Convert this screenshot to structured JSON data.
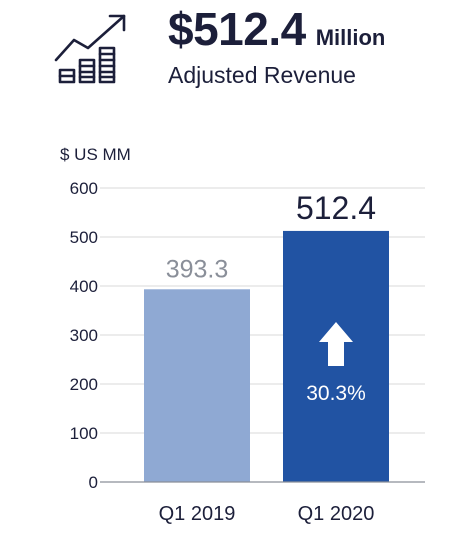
{
  "header": {
    "value": "$512.4",
    "unit": "Million",
    "subtitle": "Adjusted Revenue",
    "icon": "rising-revenue-chart-icon"
  },
  "chart_data": {
    "type": "bar",
    "ylabel": "$ US MM",
    "ylim": [
      0,
      600
    ],
    "yticks": [
      0,
      100,
      200,
      300,
      400,
      500,
      600
    ],
    "categories": [
      "Q1 2019",
      "Q1 2020"
    ],
    "values": [
      393.3,
      512.4
    ],
    "value_labels": [
      "393.3",
      "512.4"
    ],
    "bar_colors": [
      "#8fa9d3",
      "#2153a3"
    ],
    "value_label_colors": [
      "#8a8f99",
      "#1c1f3a"
    ],
    "growth": {
      "label": "30.3%",
      "direction": "up",
      "color": "#ffffff"
    },
    "grid": true,
    "grid_color": "#d9d9d9",
    "axis_color": "#8a8f99",
    "label_color": "#1c1f3a"
  }
}
